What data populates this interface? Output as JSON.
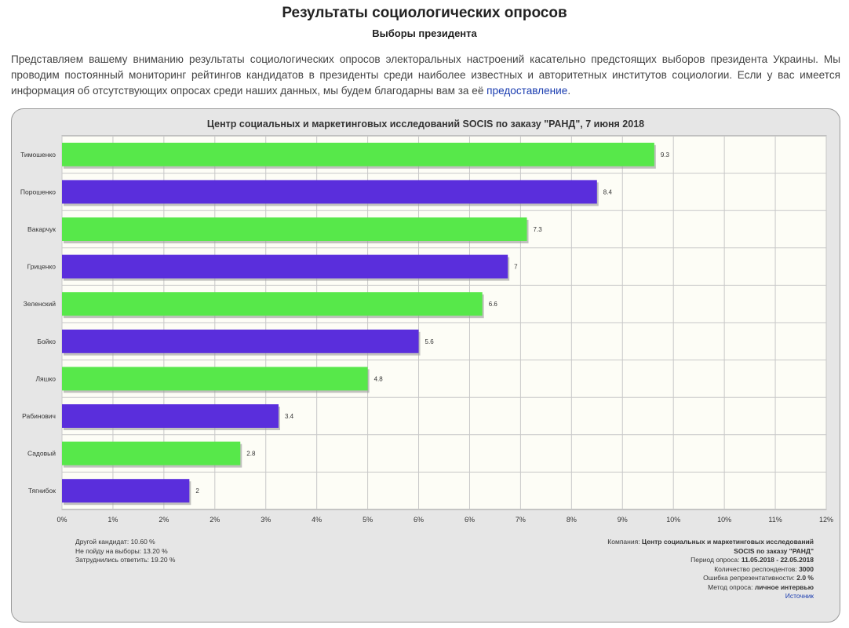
{
  "page": {
    "title": "Результаты социологических опросов",
    "subtitle": "Выборы президента",
    "intro_text": "Представляем вашему вниманию результаты социологических опросов электоральных настроений касательно предстоящих выборов президента Украины. Мы проводим постоянный мониторинг рейтингов кандидатов в президенты среди наиболее известных и авторитетных институтов социологии. Если у вас имеется информация об отсутствующих опросах среди наших данных, мы будем благодарны вам за её ",
    "intro_link": "предоставление",
    "intro_end": "."
  },
  "colors": {
    "green": "#57e84a",
    "purple": "#5a2edc",
    "panel": "#e6e6e6",
    "plot_bg": "#fdfdf6"
  },
  "chart_data": {
    "type": "bar",
    "orientation": "horizontal",
    "title": "Центр социальных и маркетинговых исследований SOCIS по заказу \"РАНД\", 7 июня 2018",
    "categories": [
      "Тимошенко",
      "Порошенко",
      "Вакарчук",
      "Гриценко",
      "Зеленский",
      "Бойко",
      "Ляшко",
      "Рабинович",
      "Садовый",
      "Тягнибок"
    ],
    "values": [
      9.3,
      8.4,
      7.3,
      7,
      6.6,
      5.6,
      4.8,
      3.4,
      2.8,
      2
    ],
    "value_labels": [
      "9.3",
      "8.4",
      "7.3",
      "7",
      "6.6",
      "5.6",
      "4.8",
      "3.4",
      "2.8",
      "2"
    ],
    "bar_colors": [
      "green",
      "purple",
      "green",
      "purple",
      "green",
      "purple",
      "green",
      "purple",
      "green",
      "purple"
    ],
    "xlim": [
      0,
      12
    ],
    "x_tick_labels": [
      "0%",
      "1%",
      "2%",
      "2%",
      "3%",
      "4%",
      "5%",
      "6%",
      "6%",
      "7%",
      "8%",
      "9%",
      "10%",
      "10%",
      "11%",
      "12%"
    ],
    "grid": true
  },
  "notes": {
    "left": [
      "Другой кандидат: 10.60 %",
      "Не пойду на выборы: 13.20 %",
      "Затруднились ответить: 19.20 %"
    ],
    "company_label": "Компания: ",
    "company_value_1": "Центр социальных и маркетинговых исследований",
    "company_value_2": "SOCIS по заказу \"РАНД\"",
    "period_label": "Период опроса: ",
    "period_value": "11.05.2018 - 22.05.2018",
    "respondents_label": "Количество респондентов: ",
    "respondents_value": "3000",
    "error_label": "Ошибка репрезентативности: ",
    "error_value": "2.0 %",
    "method_label": "Метод опроса: ",
    "method_value": "личное интервью",
    "source_link": "Источник"
  }
}
